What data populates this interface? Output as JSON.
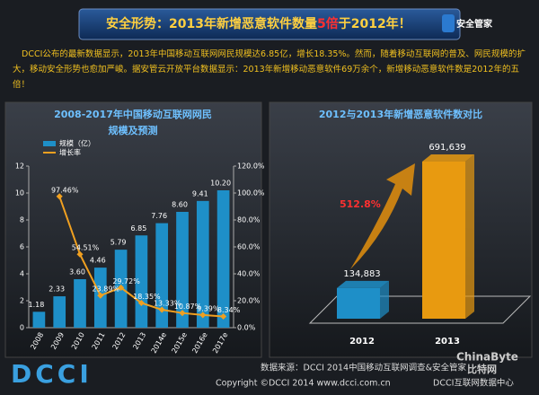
{
  "header": {
    "title_parts": [
      "安全形势：2013年新增恶意软件数量",
      "5倍",
      "于2012年！"
    ],
    "logo": "安全管家"
  },
  "intro": "DCCI公布的最新数据显示，2013年中国移动互联网网民规模达6.85亿，增长18.35%。然而，随着移动互联网的普及、网民规模的扩大，移动安全形势也愈加严峻。据安管云开放平台数据显示：2013年新增移动恶意软件69万余个，新增移动恶意软件数是2012年的五倍！",
  "chart_data": [
    {
      "type": "bar",
      "title": [
        "2008-2017年中国移动互联网网民",
        "规模及预测"
      ],
      "categories": [
        "2008",
        "2009",
        "2010",
        "2011",
        "2012",
        "2013",
        "2014e",
        "2015e",
        "2016e",
        "2017e"
      ],
      "series": [
        {
          "name": "规模（亿）",
          "color": "#1e8fc8",
          "type": "bar",
          "values": [
            1.18,
            2.33,
            3.6,
            4.46,
            5.79,
            6.85,
            7.76,
            8.6,
            9.41,
            10.2
          ],
          "value_labels": [
            "1.18",
            "2.33",
            "3.60",
            "4.46",
            "5.79",
            "6.85",
            "7.76",
            "8.60",
            "9.41",
            "10.20"
          ]
        },
        {
          "name": "增长率",
          "color": "#f0a020",
          "type": "line",
          "axis": "y2",
          "values": [
            null,
            97.46,
            54.51,
            23.89,
            29.72,
            18.35,
            13.33,
            10.87,
            9.39,
            8.34
          ],
          "value_labels": [
            null,
            "97.46%",
            "54.51%",
            "23.89%",
            "29.72%",
            "18.35%",
            "13.33%",
            "10.87%",
            "9.39%",
            "8.34%"
          ]
        }
      ],
      "ylim": [
        0,
        12
      ],
      "yticks": [
        0,
        2,
        4,
        6,
        8,
        10,
        12
      ],
      "y2lim": [
        0,
        120
      ],
      "y2ticks": [
        {
          "value": 0,
          "label": "0.0%"
        },
        {
          "value": 20,
          "label": "20.0%"
        },
        {
          "value": 40,
          "label": "40.0%"
        },
        {
          "value": 60,
          "label": "60.0%"
        },
        {
          "value": 80,
          "label": "80.0%"
        },
        {
          "value": 100,
          "label": "100.0%"
        },
        {
          "value": 120,
          "label": "120.0%"
        }
      ],
      "legend": "top-left"
    },
    {
      "type": "bar3d",
      "title": "2012与2013年新增恶意软件数对比",
      "categories": [
        "2012",
        "2013"
      ],
      "values": [
        134883,
        691639
      ],
      "value_labels": [
        "134,883",
        "691,639"
      ],
      "colors": [
        "#1e8fc8",
        "#e89a10"
      ],
      "annotation": "512.8%"
    }
  ],
  "footer": {
    "source": "数据来源：DCCI 2014中国移动互联网调查&安全管家",
    "copyright": "Copyright ©DCCI 2014 www.dcci.com.cn",
    "org": "DCCI互联网数据中心",
    "logo": "DCCI",
    "watermark": [
      "ChinaByte",
      "比特网"
    ]
  }
}
